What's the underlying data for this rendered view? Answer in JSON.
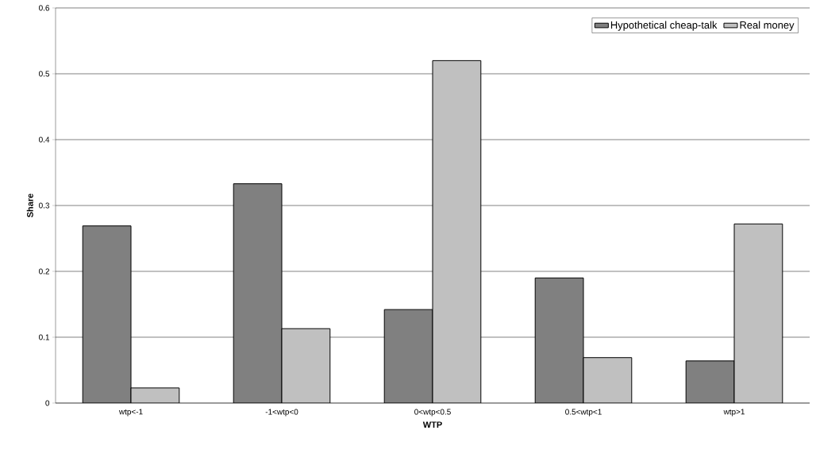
{
  "chart_data": {
    "type": "bar",
    "xlabel": "WTP",
    "ylabel": "Share",
    "categories": [
      "wtp<-1",
      "-1<wtp<0",
      "0<wtp<0.5",
      "0.5<wtp<1",
      "wtp>1"
    ],
    "series": [
      {
        "name": "Hypothetical cheap-talk",
        "color": "#808080",
        "values": [
          0.269,
          0.333,
          0.142,
          0.19,
          0.064
        ]
      },
      {
        "name": "Real money",
        "color": "#c0c0c0",
        "values": [
          0.023,
          0.113,
          0.52,
          0.069,
          0.272
        ]
      }
    ],
    "ylim": [
      0,
      0.6
    ],
    "yticks": [
      0,
      0.1,
      0.2,
      0.3,
      0.4,
      0.5,
      0.6
    ],
    "grid": "y",
    "legend": "top right"
  }
}
